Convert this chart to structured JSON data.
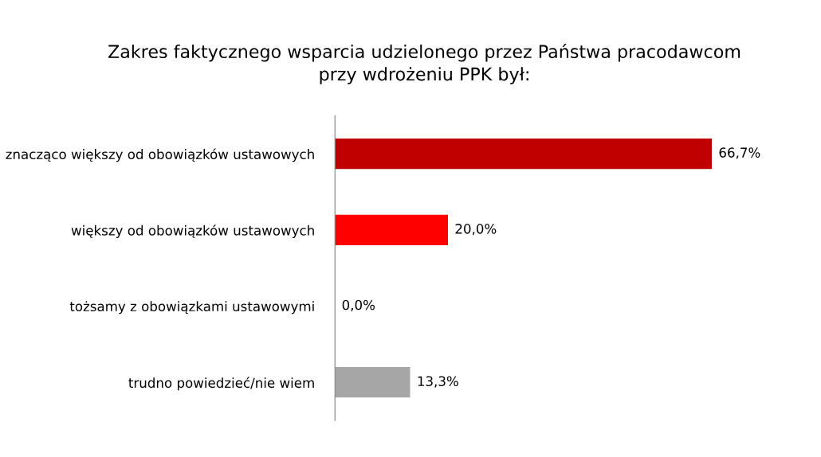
{
  "chart_data": {
    "type": "bar",
    "orientation": "horizontal",
    "title": "Zakres faktycznego wsparcia udzielonego przez Państwa pracodawcom\nprzy wdrożeniu PPK był:",
    "categories": [
      "znacząco większy od obowiązków ustawowych",
      "większy od obowiązków ustawowych",
      "tożsamy z obowiązkami ustawowymi",
      "trudno powiedzieć/nie wiem"
    ],
    "values": [
      66.7,
      20.0,
      0.0,
      13.3
    ],
    "value_labels": [
      "66,7%",
      "20,0%",
      "0,0%",
      "13,3%"
    ],
    "colors": [
      "#c00000",
      "#ff0000",
      "#808080",
      "#a6a6a6"
    ],
    "grid": false,
    "legend": false
  }
}
